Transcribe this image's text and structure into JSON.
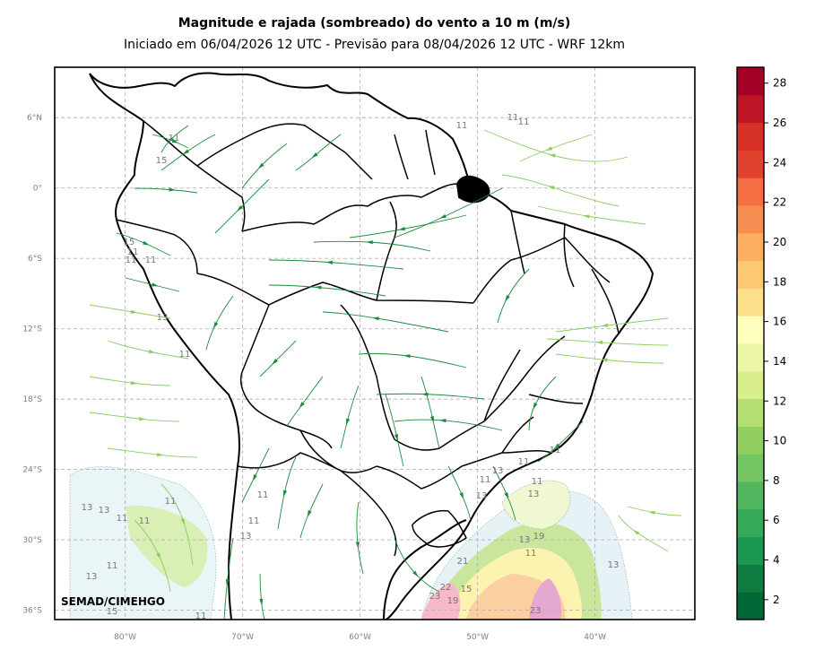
{
  "header": {
    "title": "Magnitude e rajada (sombreado) do vento a 10 m (m/s)",
    "subtitle": "Iniciado em 06/04/2026 12 UTC - Previsão para 08/04/2026 12 UTC - WRF 12km"
  },
  "map": {
    "lon_range": [
      -86,
      -31.5
    ],
    "lat_range": [
      -36.8,
      10.3
    ],
    "lat_ticks": [
      "6°N",
      "0°",
      "6°S",
      "12°S",
      "18°S",
      "24°S",
      "30°S",
      "36°S"
    ],
    "lon_ticks": [
      "80°W",
      "70°W",
      "60°W",
      "50°W",
      "40°W"
    ],
    "watermark": "SEMAD/CIMEHGO",
    "contour_labels": [
      "11",
      "11",
      "11",
      "11",
      "15",
      "15",
      "11",
      "11",
      "11",
      "13",
      "11",
      "11",
      "13",
      "13",
      "11",
      "11",
      "11",
      "13",
      "15",
      "11",
      "11",
      "13",
      "11",
      "13",
      "11",
      "11",
      "13",
      "13",
      "11",
      "19",
      "11",
      "13",
      "13",
      "21",
      "15",
      "23",
      "19",
      "22",
      "23",
      "11"
    ],
    "gridline_color": "#b5b5b5"
  },
  "colorbar": {
    "ticks": [
      "2",
      "4",
      "6",
      "8",
      "10",
      "12",
      "14",
      "16",
      "18",
      "20",
      "22",
      "24",
      "26",
      "28"
    ],
    "colors": [
      "#006837",
      "#107c41",
      "#1a9850",
      "#35a958",
      "#52b65e",
      "#74c564",
      "#91cf60",
      "#b3df72",
      "#d9ef8b",
      "#ecf6a6",
      "#fefebd",
      "#fee08b",
      "#fdc872",
      "#fdae61",
      "#f88d52",
      "#f46d43",
      "#e04230",
      "#d73027",
      "#bd1526",
      "#a50026"
    ],
    "range": [
      1,
      28.8
    ]
  },
  "legend_colors": {
    "streamline_dark": "#1a8a3e",
    "streamline_light": "#8ccc62",
    "light_shade": "#e8f4f8"
  }
}
